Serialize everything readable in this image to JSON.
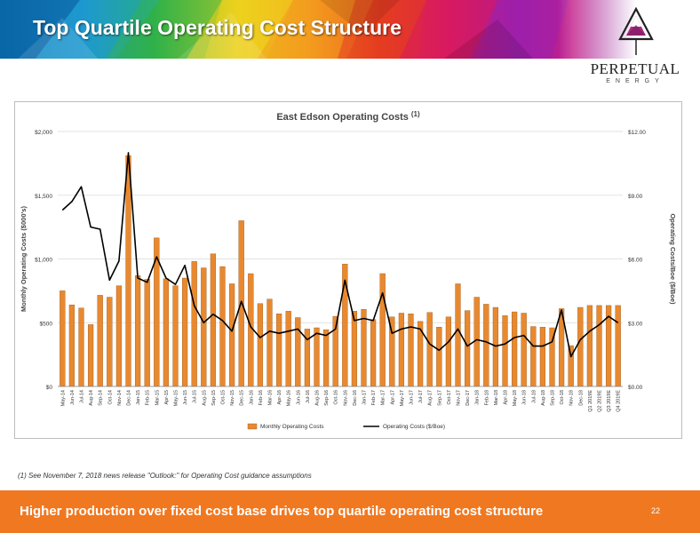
{
  "slide": {
    "title": "Top Quartile Operating Cost Structure",
    "footnote": "(1) See November 7, 2018 news release \"Outlook:\" for Operating Cost guidance assumptions",
    "footer_text": "Higher production over fixed cost base drives top quartile operating cost structure",
    "page_number": "22",
    "accent_color": "#f07821"
  },
  "logo": {
    "name": "PERPETUAL",
    "sub": "ENERGY",
    "icon": "triangle-logo-icon"
  },
  "chart_data": {
    "type": "bar",
    "title": "East Edson Operating Costs",
    "title_sup": "(1)",
    "ylabel_left": "Monthly Operating Costs ($000's)",
    "ylabel_right": "Operating Costs/Boe ($/Boe)",
    "y_left_ticks": [
      "$0",
      "$500",
      "$1,000",
      "$1,500",
      "$2,000"
    ],
    "y_right_ticks": [
      "$0.00",
      "$3.00",
      "$6.00",
      "$9.00",
      "$12.00"
    ],
    "ylim_left": [
      0,
      2000
    ],
    "ylim_right": [
      0,
      12
    ],
    "grid": true,
    "legend_position": "bottom",
    "categories": [
      "May-14",
      "Jun-14",
      "Jul-14",
      "Aug-14",
      "Sep-14",
      "Oct-14",
      "Nov-14",
      "Dec-14",
      "Jan-15",
      "Feb-15",
      "Mar-15",
      "Apr-15",
      "May-15",
      "Jun-15",
      "Jul-15",
      "Aug-15",
      "Sep-15",
      "Oct-15",
      "Nov-15",
      "Dec-15",
      "Jan-16",
      "Feb-16",
      "Mar-16",
      "Apr-16",
      "May-16",
      "Jun-16",
      "Jul-16",
      "Aug-16",
      "Sep-16",
      "Oct-16",
      "Nov-16",
      "Dec-16",
      "Jan-17",
      "Feb-17",
      "Mar-17",
      "Apr-17",
      "May-17",
      "Jun-17",
      "Jul-17",
      "Aug-17",
      "Sep-17",
      "Oct-17",
      "Nov-17",
      "Dec-17",
      "Jan-18",
      "Feb-18",
      "Mar-18",
      "Apr-18",
      "May-18",
      "Jun-18",
      "Jul-18",
      "Aug-18",
      "Sep-18",
      "Oct-18",
      "Nov-18",
      "Dec-18",
      "Q1 2019E",
      "Q2 2019E",
      "Q3 2019E",
      "Q4 2019E"
    ],
    "series": [
      {
        "name": "Monthly Operating Costs",
        "axis": "left",
        "kind": "bar",
        "color": "#e8892f",
        "values": [
          750,
          640,
          615,
          485,
          715,
          700,
          790,
          1810,
          870,
          840,
          1165,
          845,
          790,
          850,
          980,
          930,
          1040,
          940,
          805,
          1300,
          885,
          650,
          685,
          570,
          590,
          540,
          450,
          460,
          445,
          550,
          960,
          590,
          605,
          525,
          885,
          545,
          575,
          570,
          510,
          580,
          465,
          545,
          805,
          595,
          700,
          645,
          620,
          555,
          585,
          575,
          470,
          465,
          460,
          610,
          320,
          620,
          635,
          635,
          635,
          635
        ]
      },
      {
        "name": "Operating Costs ($/Boe)",
        "axis": "right",
        "kind": "line",
        "color": "#000000",
        "values": [
          8.3,
          8.7,
          9.4,
          7.5,
          7.4,
          5.0,
          5.9,
          11.0,
          5.1,
          4.9,
          6.1,
          5.1,
          4.8,
          5.7,
          3.8,
          3.0,
          3.4,
          3.1,
          2.6,
          4.0,
          2.8,
          2.3,
          2.6,
          2.5,
          2.6,
          2.7,
          2.2,
          2.5,
          2.4,
          2.7,
          5.0,
          3.1,
          3.2,
          3.1,
          4.4,
          2.5,
          2.7,
          2.8,
          2.7,
          2.0,
          1.7,
          2.1,
          2.7,
          1.9,
          2.2,
          2.1,
          1.9,
          2.0,
          2.3,
          2.4,
          1.9,
          1.9,
          2.1,
          3.6,
          1.4,
          2.2,
          2.6,
          2.9,
          3.3,
          3.0
        ]
      }
    ]
  }
}
